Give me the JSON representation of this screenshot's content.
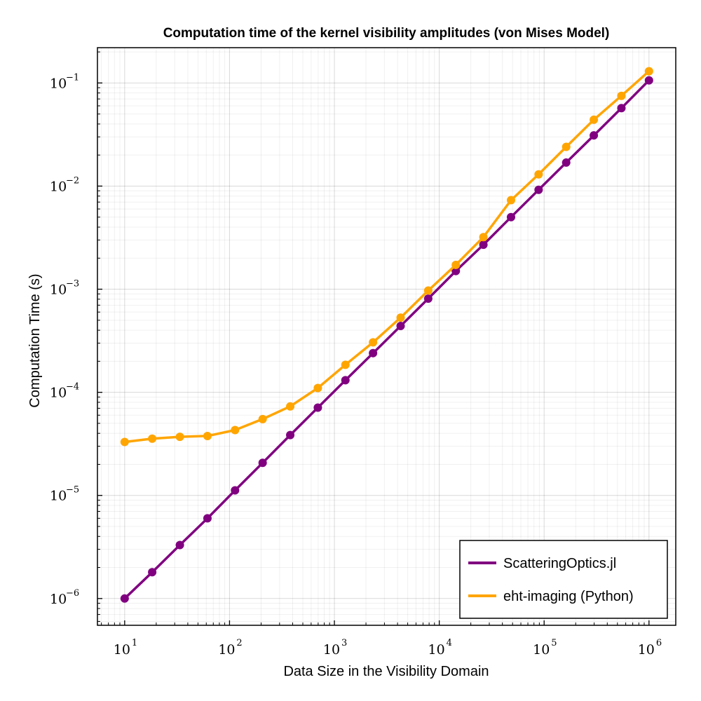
{
  "chart_data": {
    "type": "line",
    "title": "Computation time of the kernel visibility amplitudes (von Mises Model)",
    "xlabel": "Data Size in the Visibility Domain",
    "ylabel": "Computation Time (s)",
    "xscale": "log",
    "yscale": "log",
    "xlim": [
      5.5,
      1800000
    ],
    "ylim": [
      5.5e-07,
      0.22
    ],
    "x_ticks": [
      10,
      100,
      1000,
      10000,
      100000,
      1000000
    ],
    "x_tick_labels": [
      {
        "base": "10",
        "exp": "1"
      },
      {
        "base": "10",
        "exp": "2"
      },
      {
        "base": "10",
        "exp": "3"
      },
      {
        "base": "10",
        "exp": "4"
      },
      {
        "base": "10",
        "exp": "5"
      },
      {
        "base": "10",
        "exp": "6"
      }
    ],
    "y_ticks": [
      1e-06,
      1e-05,
      0.0001,
      0.001,
      0.01,
      0.1
    ],
    "y_tick_labels": [
      {
        "base": "10",
        "exp": "−6"
      },
      {
        "base": "10",
        "exp": "−5"
      },
      {
        "base": "10",
        "exp": "−4"
      },
      {
        "base": "10",
        "exp": "−3"
      },
      {
        "base": "10",
        "exp": "−2"
      },
      {
        "base": "10",
        "exp": "−1"
      }
    ],
    "grid": true,
    "legend_position": "bottom-right",
    "x": [
      10,
      18.3,
      33.6,
      61.6,
      112.9,
      206.9,
      379.3,
      695.2,
      1274,
      2336,
      4281,
      7848,
      14384,
      26367,
      48329,
      88587,
      162378,
      297635,
      545559,
      1000000
    ],
    "series": [
      {
        "name": "ScatteringOptics.jl",
        "color": "#800080",
        "values": [
          1e-06,
          1.8e-06,
          3.3e-06,
          6e-06,
          1.12e-05,
          2.07e-05,
          3.85e-05,
          7.1e-05,
          0.000131,
          0.00024,
          0.00044,
          0.00081,
          0.0015,
          0.0027,
          0.005,
          0.0092,
          0.0169,
          0.031,
          0.057,
          0.106
        ]
      },
      {
        "name": "eht-imaging (Python)",
        "color": "#ffa500",
        "values": [
          3.3e-05,
          3.55e-05,
          3.7e-05,
          3.77e-05,
          4.3e-05,
          5.5e-05,
          7.3e-05,
          0.00011,
          0.000185,
          0.000305,
          0.00053,
          0.00097,
          0.00172,
          0.0032,
          0.0073,
          0.013,
          0.024,
          0.044,
          0.075,
          0.13
        ]
      }
    ]
  }
}
